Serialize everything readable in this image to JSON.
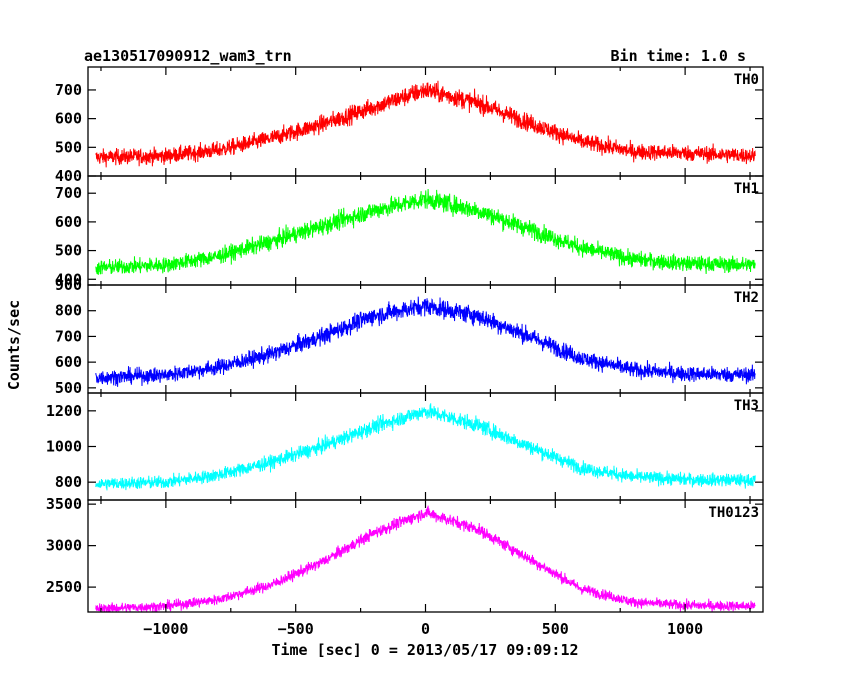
{
  "header": {
    "title": "ae130517090912_wam3_trn",
    "bin_time": "Bin time: 1.0 s"
  },
  "chart_data": {
    "type": "line",
    "title": "ae130517090912_wam3_trn",
    "xlabel": "Time [sec] 0 = 2013/05/17 09:09:12",
    "ylabel": "Counts/sec",
    "xlim": [
      -1300,
      1300
    ],
    "xticks": [
      -1000,
      -500,
      0,
      500,
      1000
    ],
    "grid": false,
    "panels": [
      {
        "name": "TH0",
        "color": "#ff0000",
        "ylim": [
          400,
          780
        ],
        "yticks": [
          400,
          500,
          600,
          700
        ],
        "x": [
          -1270,
          -1000,
          -800,
          -600,
          -400,
          -200,
          0,
          200,
          400,
          600,
          800,
          1000,
          1270
        ],
        "y": [
          465,
          470,
          490,
          530,
          580,
          640,
          700,
          655,
          585,
          520,
          485,
          480,
          470
        ]
      },
      {
        "name": "TH1",
        "color": "#00ff00",
        "ylim": [
          380,
          760
        ],
        "yticks": [
          400,
          500,
          600,
          700
        ],
        "x": [
          -1270,
          -1000,
          -800,
          -600,
          -400,
          -200,
          0,
          200,
          400,
          600,
          800,
          1000,
          1270
        ],
        "y": [
          440,
          450,
          480,
          530,
          585,
          640,
          680,
          640,
          575,
          510,
          470,
          455,
          450
        ]
      },
      {
        "name": "TH2",
        "color": "#0000ff",
        "ylim": [
          480,
          900
        ],
        "yticks": [
          500,
          600,
          700,
          800,
          900
        ],
        "x": [
          -1270,
          -1000,
          -800,
          -600,
          -400,
          -200,
          0,
          200,
          400,
          600,
          800,
          1000,
          1270
        ],
        "y": [
          540,
          550,
          580,
          630,
          700,
          780,
          820,
          780,
          700,
          615,
          570,
          555,
          550
        ]
      },
      {
        "name": "TH3",
        "color": "#00ffff",
        "ylim": [
          700,
          1300
        ],
        "yticks": [
          800,
          1000,
          1200
        ],
        "x": [
          -1270,
          -1000,
          -800,
          -600,
          -400,
          -200,
          0,
          200,
          400,
          600,
          800,
          1000,
          1270
        ],
        "y": [
          790,
          800,
          840,
          910,
          1000,
          1110,
          1200,
          1120,
          1000,
          880,
          830,
          815,
          810
        ]
      },
      {
        "name": "TH0123",
        "color": "#ff00ff",
        "ylim": [
          2200,
          3550
        ],
        "yticks": [
          2500,
          3000,
          3500
        ],
        "x": [
          -1270,
          -1000,
          -800,
          -600,
          -400,
          -200,
          0,
          200,
          400,
          600,
          800,
          1000,
          1270
        ],
        "y": [
          2240,
          2270,
          2350,
          2520,
          2800,
          3150,
          3400,
          3200,
          2840,
          2480,
          2320,
          2280,
          2270
        ]
      }
    ]
  }
}
